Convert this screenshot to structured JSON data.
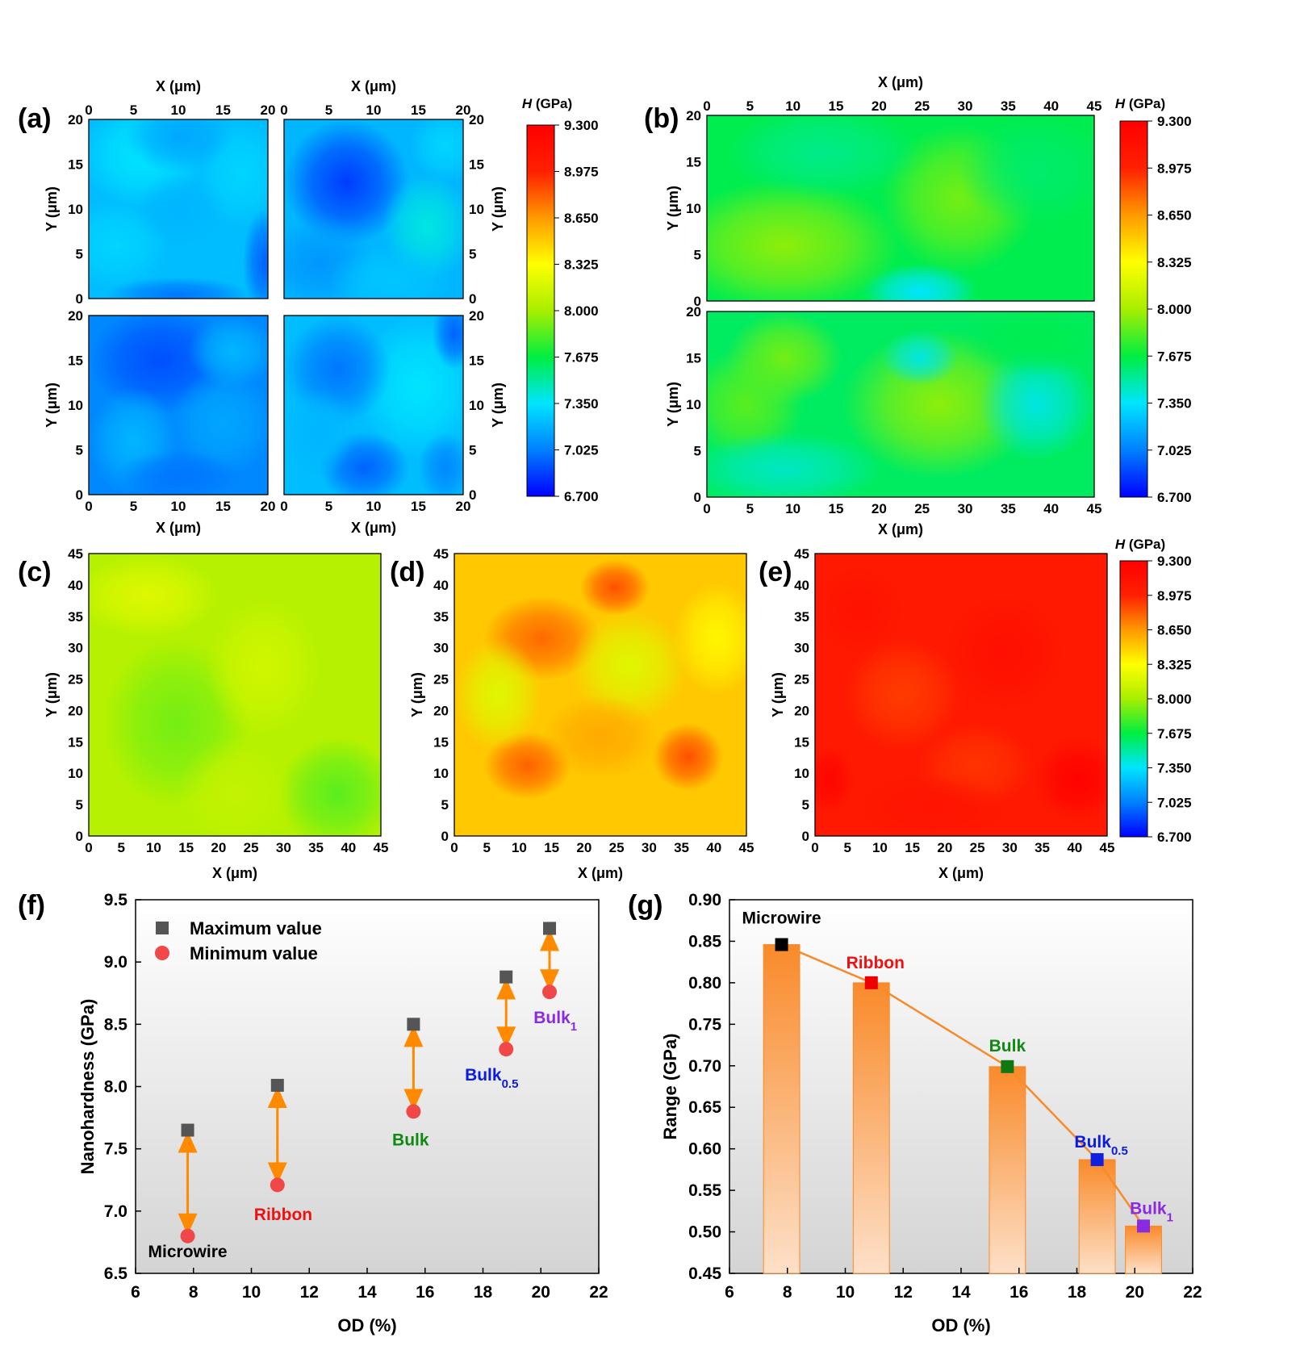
{
  "colorbar": {
    "title": "H (GPa)",
    "ticks": [
      "9.300",
      "8.975",
      "8.650",
      "8.325",
      "8.000",
      "7.675",
      "7.350",
      "7.025",
      "6.700"
    ],
    "min": 6.7,
    "max": 9.3,
    "colors": [
      "#0000ff",
      "#0080ff",
      "#00e5ff",
      "#00ee40",
      "#a8ee00",
      "#ffff00",
      "#ff9900",
      "#ff2000",
      "#ff0000"
    ]
  },
  "panels": {
    "a": {
      "label": "(a)",
      "x_ticks": [
        "0",
        "5",
        "10",
        "15",
        "20"
      ],
      "y_ticks": [
        "0",
        "5",
        "10",
        "15",
        "20"
      ],
      "xlabel": "X (μm)",
      "ylabel": "Y (μm)"
    },
    "b": {
      "label": "(b)",
      "x_ticks": [
        "0",
        "5",
        "10",
        "15",
        "20",
        "25",
        "30",
        "35",
        "40",
        "45"
      ],
      "y_ticks": [
        "0",
        "5",
        "10",
        "15",
        "20"
      ],
      "xlabel": "X (μm)",
      "ylabel": "Y (μm)"
    },
    "c": {
      "label": "(c)",
      "x_ticks": [
        "0",
        "5",
        "10",
        "15",
        "20",
        "25",
        "30",
        "35",
        "40",
        "45"
      ],
      "y_ticks": [
        "0",
        "5",
        "10",
        "15",
        "20",
        "25",
        "30",
        "35",
        "40",
        "45"
      ],
      "xlabel": "X (μm)",
      "ylabel": "Y (μm)"
    },
    "d": {
      "label": "(d)",
      "x_ticks": [
        "0",
        "5",
        "10",
        "15",
        "20",
        "25",
        "30",
        "35",
        "40",
        "45"
      ],
      "y_ticks": [
        "0",
        "5",
        "10",
        "15",
        "20",
        "25",
        "30",
        "35",
        "40",
        "45"
      ],
      "xlabel": "X (μm)",
      "ylabel": "Y (μm)"
    },
    "e": {
      "label": "(e)",
      "x_ticks": [
        "0",
        "5",
        "10",
        "15",
        "20",
        "25",
        "30",
        "35",
        "40",
        "45"
      ],
      "y_ticks": [
        "0",
        "5",
        "10",
        "15",
        "20",
        "25",
        "30",
        "35",
        "40",
        "45"
      ],
      "xlabel": "X (μm)",
      "ylabel": "Y (μm)"
    }
  },
  "chart_data": [
    {
      "type": "scatter",
      "panel": "(f)",
      "xlabel": "OD (%)",
      "ylabel": "Nanohardness (GPa)",
      "xlim": [
        6,
        22
      ],
      "ylim": [
        6.5,
        9.5
      ],
      "x_ticks": [
        6,
        8,
        10,
        12,
        14,
        16,
        18,
        20,
        22
      ],
      "y_ticks": [
        6.5,
        7.0,
        7.5,
        8.0,
        8.5,
        9.0,
        9.5
      ],
      "legend": {
        "position": "top-left",
        "entries": [
          "Maximum value",
          "Minimum value"
        ]
      },
      "series": [
        {
          "name": "Maximum value",
          "marker": "square",
          "color": "#555555",
          "x": [
            7.8,
            10.9,
            15.6,
            18.8,
            20.3
          ],
          "y": [
            7.65,
            8.01,
            8.5,
            8.88,
            9.27
          ]
        },
        {
          "name": "Minimum value",
          "marker": "circle",
          "color": "#f04848",
          "x": [
            7.8,
            10.9,
            15.6,
            18.8,
            20.3
          ],
          "y": [
            6.8,
            7.21,
            7.8,
            8.3,
            8.76
          ]
        }
      ],
      "arrow_color": "#ff8a00",
      "annotations": [
        {
          "base": "Microwire",
          "sub": "",
          "x": 7.8,
          "y": 6.68,
          "color": "#000000"
        },
        {
          "base": "Ribbon",
          "sub": "",
          "x": 11.1,
          "y": 6.98,
          "color": "#ee1111"
        },
        {
          "base": "Bulk",
          "sub": "",
          "x": 15.5,
          "y": 7.58,
          "color": "#118811"
        },
        {
          "base": "Bulk",
          "sub": "0.5",
          "x": 18.3,
          "y": 8.1,
          "color": "#0a1adf"
        },
        {
          "base": "Bulk",
          "sub": "1",
          "x": 20.5,
          "y": 8.56,
          "color": "#8a2be2"
        }
      ]
    },
    {
      "type": "bar",
      "panel": "(g)",
      "xlabel": "OD (%)",
      "ylabel": "Range (GPa)",
      "xlim": [
        6,
        22
      ],
      "ylim": [
        0.45,
        0.9
      ],
      "x_ticks": [
        6,
        8,
        10,
        12,
        14,
        16,
        18,
        20,
        22
      ],
      "y_ticks": [
        0.45,
        0.5,
        0.55,
        0.6,
        0.65,
        0.7,
        0.75,
        0.8,
        0.85,
        0.9
      ],
      "x": [
        7.8,
        10.9,
        15.6,
        18.7,
        20.3
      ],
      "values": [
        0.846,
        0.8,
        0.699,
        0.587,
        0.507
      ],
      "bar_width_data": 1.25,
      "bar_color": "#f98a2a",
      "line_color": "#f98a2a",
      "labels": [
        {
          "base": "Microwire",
          "sub": "",
          "color": "#000000"
        },
        {
          "base": "Ribbon",
          "sub": "",
          "color": "#ee1111"
        },
        {
          "base": "Bulk",
          "sub": "",
          "color": "#118811"
        },
        {
          "base": "Bulk",
          "sub": "0.5",
          "color": "#0a1adf"
        },
        {
          "base": "Bulk",
          "sub": "1",
          "color": "#8a2be2"
        }
      ],
      "marker_colors": [
        "#000000",
        "#ee0000",
        "#117711",
        "#1020e0",
        "#8a2be2"
      ]
    }
  ]
}
